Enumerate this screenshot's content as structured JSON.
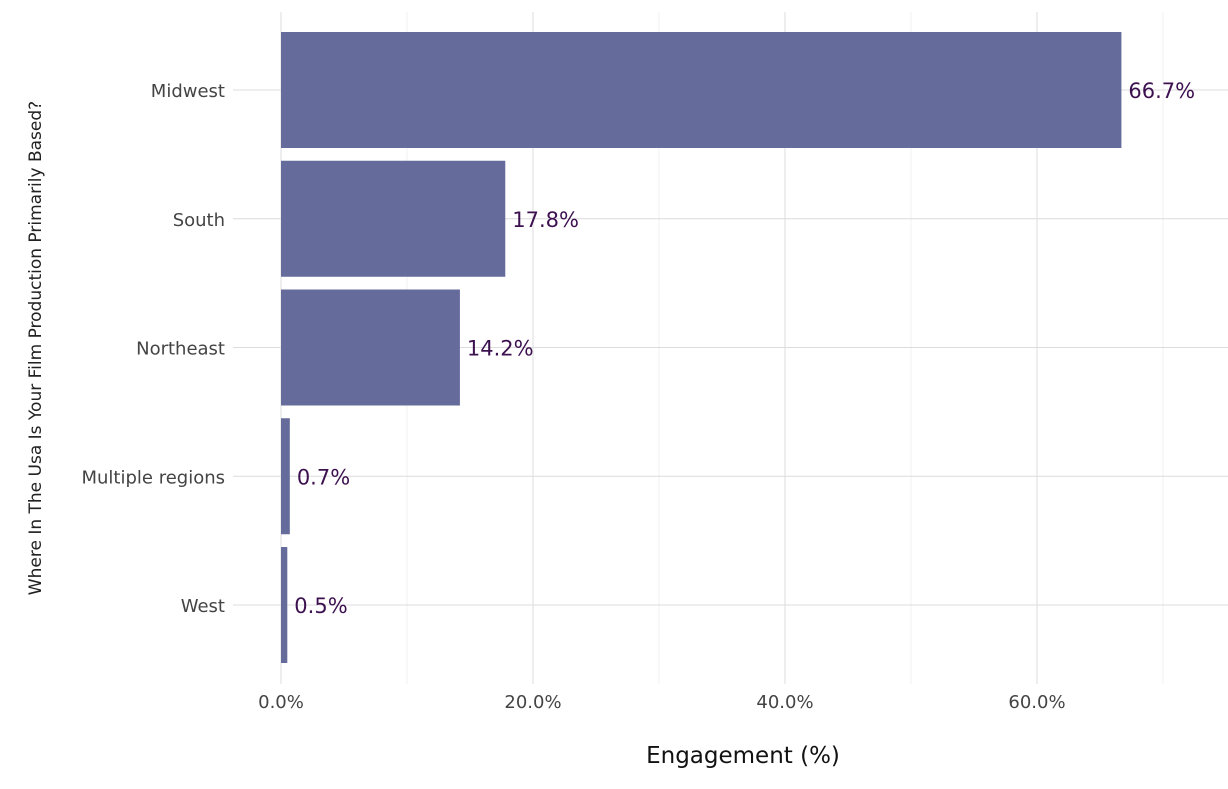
{
  "chart_data": {
    "type": "bar",
    "orientation": "horizontal",
    "categories": [
      "Midwest",
      "South",
      "Northeast",
      "Multiple regions",
      "West"
    ],
    "values": [
      66.7,
      17.8,
      14.2,
      0.7,
      0.5
    ],
    "data_labels": [
      "66.7%",
      "17.8%",
      "14.2%",
      "0.7%",
      "0.5%"
    ],
    "xlabel": "Engagement (%)",
    "ylabel": "Where In The Usa Is Your Film Production Primarily Based?",
    "xticks": [
      0,
      20,
      40,
      60
    ],
    "xtick_labels": [
      "0.0%",
      "20.0%",
      "40.0%",
      "60.0%"
    ],
    "xlim": [
      0,
      75
    ],
    "grid": true,
    "bar_color": "#656b9a",
    "label_color": "#3d1150"
  }
}
